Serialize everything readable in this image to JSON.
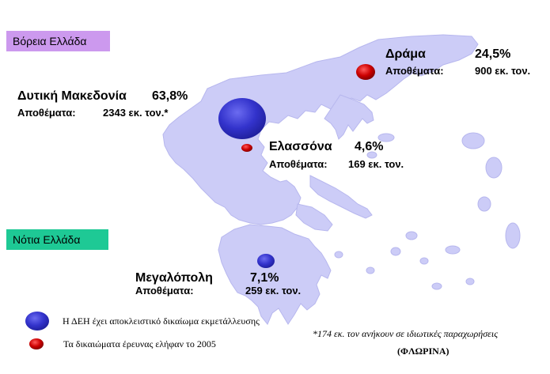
{
  "regions": {
    "north": "Βόρεια Ελλάδα",
    "south": "Νότια Ελλάδα"
  },
  "colors": {
    "land": "#ccccf7",
    "land_edge": "#b7b7ee",
    "dei_marker": "#3333cc",
    "rights_marker": "#cc0000",
    "north_badge": "#cc99ee",
    "south_badge": "#1ec995"
  },
  "sites": {
    "drama": {
      "name": "Δράμα",
      "percent": "24,5%",
      "reserves_label": "Αποθέματα:",
      "reserves_value": "900 εκ. τον.",
      "marker": "rights"
    },
    "dytiki": {
      "name": "Δυτική Μακεδονία",
      "percent": "63,8%",
      "reserves_label": "Αποθέματα:",
      "reserves_value": "2343  εκ. τον.*",
      "marker": "dei"
    },
    "elassona": {
      "name": "Ελασσόνα",
      "percent": "4,6%",
      "reserves_label": "Αποθέματα:",
      "reserves_value": "169 εκ. τον.",
      "marker": "rights"
    },
    "megalopoli": {
      "name": "Μεγαλόπολη",
      "percent": "7,1%",
      "reserves_label": "Αποθέματα:",
      "reserves_value": "259 εκ. τον.",
      "marker": "dei"
    }
  },
  "legend": {
    "dei": "Η ΔΕΗ έχει αποκλειστικό δικαίωμα εκμετάλλευσης",
    "rights": "Τα δικαιώματα έρευνας ελήφαν το 2005"
  },
  "footnote": {
    "line1": "*174  εκ. τον ανήκουν σε ιδιωτικές παραχωρήσεις",
    "line2": "(ΦΛΩΡΙΝΑ)"
  }
}
